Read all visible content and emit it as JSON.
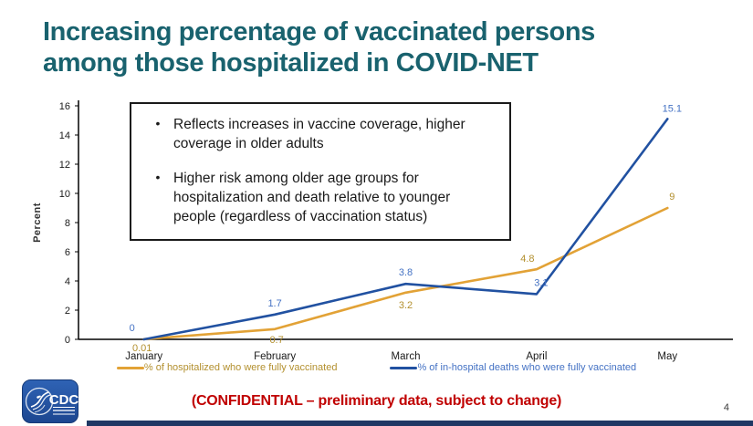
{
  "slide": {
    "title_line1": "Increasing percentage of vaccinated persons",
    "title_line2": "among those hospitalized in COVID-NET",
    "title_color": "#19626E",
    "confidential_note": "(CONFIDENTIAL – preliminary data, subject to change)",
    "confidential_color": "#C00000",
    "page_number": "4",
    "logo_text": "CDC",
    "logo_color": "#2353A3",
    "bottom_bar_color": "#1F3864"
  },
  "callout": {
    "bullets": [
      "Reflects increases in vaccine coverage, higher coverage in older adults",
      "Higher risk among older age groups for hospitalization and death relative to younger people (regardless of vaccination status)"
    ]
  },
  "chart_data": {
    "type": "line",
    "title": "",
    "xlabel": "",
    "ylabel": "Percent",
    "ylim": [
      0,
      16
    ],
    "ytick_step": 2,
    "grid": false,
    "legend_position": "bottom",
    "categories": [
      "January",
      "February",
      "March",
      "April",
      "May"
    ],
    "series": [
      {
        "name": "% of hospitalized who were fully vaccinated",
        "color": "#E2A236",
        "label_color": "#B3902F",
        "values": [
          0.01,
          0.7,
          3.2,
          4.8,
          9
        ],
        "label_offsets": [
          [
            -2,
            13
          ],
          [
            2,
            15
          ],
          [
            0,
            17
          ],
          [
            -10,
            -8
          ],
          [
            5,
            -9
          ]
        ]
      },
      {
        "name": "% of in-hospital deaths who were fully vaccinated",
        "color": "#2151A1",
        "label_color": "#4472C4",
        "values": [
          0,
          1.7,
          3.8,
          3.1,
          15.1
        ],
        "label_offsets": [
          [
            -13,
            -9
          ],
          [
            0,
            -9
          ],
          [
            0,
            -9
          ],
          [
            5,
            -9
          ],
          [
            5,
            -8
          ]
        ]
      }
    ]
  }
}
